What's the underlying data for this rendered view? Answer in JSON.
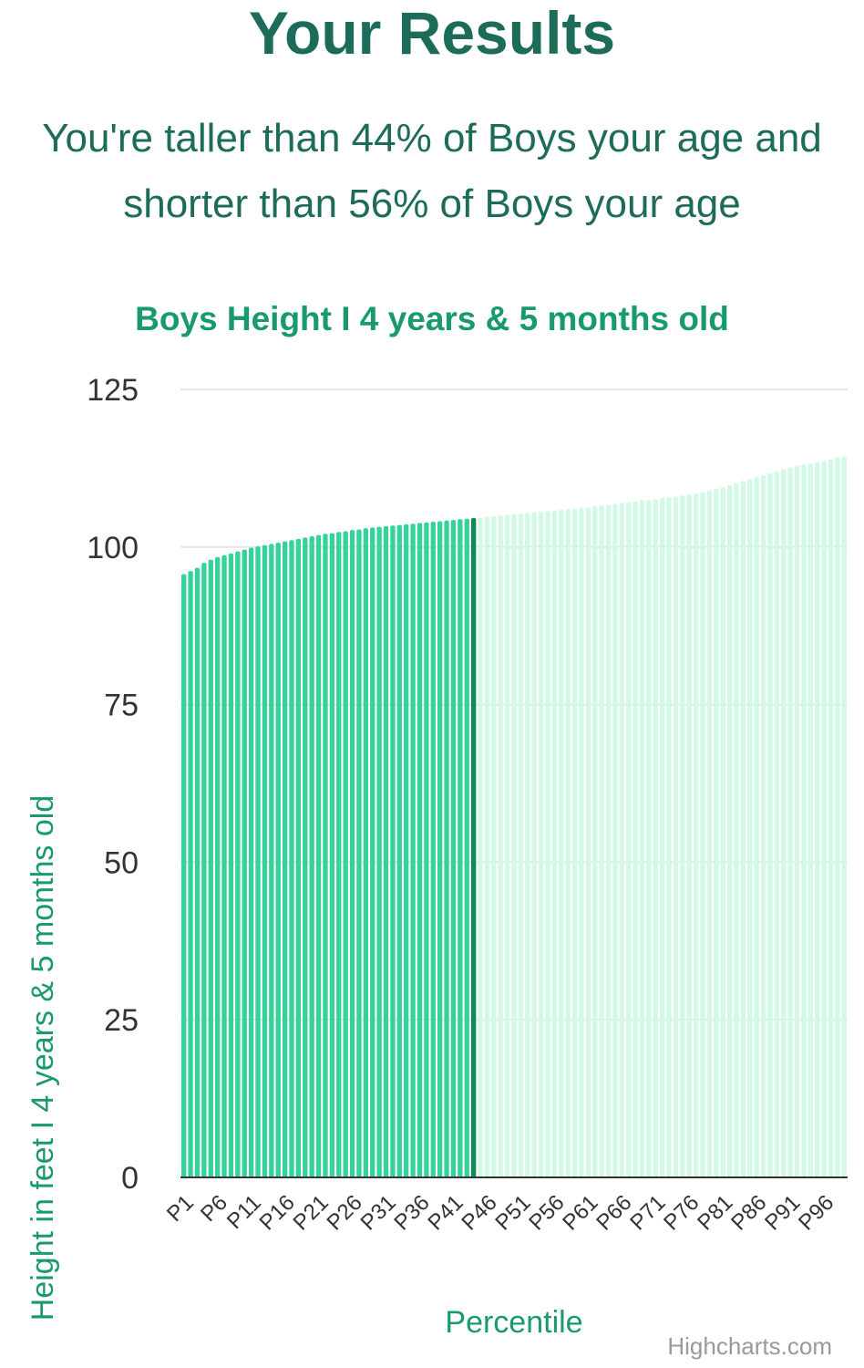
{
  "header": {
    "title": "Your Results",
    "summary_line_1": "You're taller than 44% of Boys your age and",
    "summary_line_2": "shorter than 56% of Boys your age"
  },
  "credits": "Highcharts.com",
  "colors": {
    "heading": "#1d6b59",
    "accent": "#199a6c",
    "bar_below": "#35d39a",
    "bar_current": "#0f8a55",
    "bar_above": "#d2f8e6",
    "grid": "#e6e6e6",
    "axis_line": "#333333",
    "tick_text": "#333333",
    "credits_text": "#999999"
  },
  "chart_data": {
    "type": "bar",
    "title": "Boys Height I 4 years & 5 months old",
    "xlabel": "Percentile",
    "ylabel": "Height in feet I 4 years & 5 months old",
    "ylim": [
      0,
      125
    ],
    "yticks": [
      0,
      25,
      50,
      75,
      100,
      125
    ],
    "grid": true,
    "highlight_index": 43,
    "categories": [
      "P1",
      "P2",
      "P3",
      "P4",
      "P5",
      "P6",
      "P7",
      "P8",
      "P9",
      "P10",
      "P11",
      "P12",
      "P13",
      "P14",
      "P15",
      "P16",
      "P17",
      "P18",
      "P19",
      "P20",
      "P21",
      "P22",
      "P23",
      "P24",
      "P25",
      "P26",
      "P27",
      "P28",
      "P29",
      "P30",
      "P31",
      "P32",
      "P33",
      "P34",
      "P35",
      "P36",
      "P37",
      "P38",
      "P39",
      "P40",
      "P41",
      "P42",
      "P43",
      "P44",
      "P45",
      "P46",
      "P47",
      "P48",
      "P49",
      "P50",
      "P51",
      "P52",
      "P53",
      "P54",
      "P55",
      "P56",
      "P57",
      "P58",
      "P59",
      "P60",
      "P61",
      "P62",
      "P63",
      "P64",
      "P65",
      "P66",
      "P67",
      "P68",
      "P69",
      "P70",
      "P71",
      "P72",
      "P73",
      "P74",
      "P75",
      "P76",
      "P77",
      "P78",
      "P79",
      "P80",
      "P81",
      "P82",
      "P83",
      "P84",
      "P85",
      "P86",
      "P87",
      "P88",
      "P89",
      "P90",
      "P91",
      "P92",
      "P93",
      "P94",
      "P95",
      "P96",
      "P97",
      "P98",
      "P99"
    ],
    "tick_labels": [
      "P1",
      "P6",
      "P11",
      "P16",
      "P21",
      "P26",
      "P31",
      "P36",
      "P41",
      "P46",
      "P51",
      "P56",
      "P61",
      "P66",
      "P71",
      "P76",
      "P81",
      "P86",
      "P91",
      "P96"
    ],
    "values": [
      95.7,
      96.2,
      96.7,
      97.5,
      98.0,
      98.4,
      98.7,
      99.0,
      99.3,
      99.6,
      99.9,
      100.1,
      100.3,
      100.5,
      100.7,
      100.9,
      101.1,
      101.3,
      101.5,
      101.7,
      101.9,
      102.1,
      102.2,
      102.4,
      102.5,
      102.7,
      102.8,
      103.0,
      103.1,
      103.2,
      103.3,
      103.4,
      103.5,
      103.6,
      103.7,
      103.8,
      103.9,
      104.0,
      104.1,
      104.2,
      104.3,
      104.4,
      104.5,
      104.6,
      104.7,
      104.8,
      104.9,
      105.0,
      105.1,
      105.2,
      105.3,
      105.4,
      105.5,
      105.6,
      105.7,
      105.8,
      105.9,
      106.0,
      106.1,
      106.2,
      106.3,
      106.5,
      106.6,
      106.7,
      106.8,
      107.0,
      107.1,
      107.2,
      107.4,
      107.5,
      107.6,
      107.8,
      107.9,
      108.0,
      108.2,
      108.3,
      108.5,
      108.7,
      108.9,
      109.2,
      109.5,
      109.8,
      110.1,
      110.5,
      110.8,
      111.1,
      111.4,
      111.7,
      112.0,
      112.3,
      112.6,
      112.9,
      113.1,
      113.3,
      113.5,
      113.7,
      113.9,
      114.2,
      114.4
    ]
  }
}
